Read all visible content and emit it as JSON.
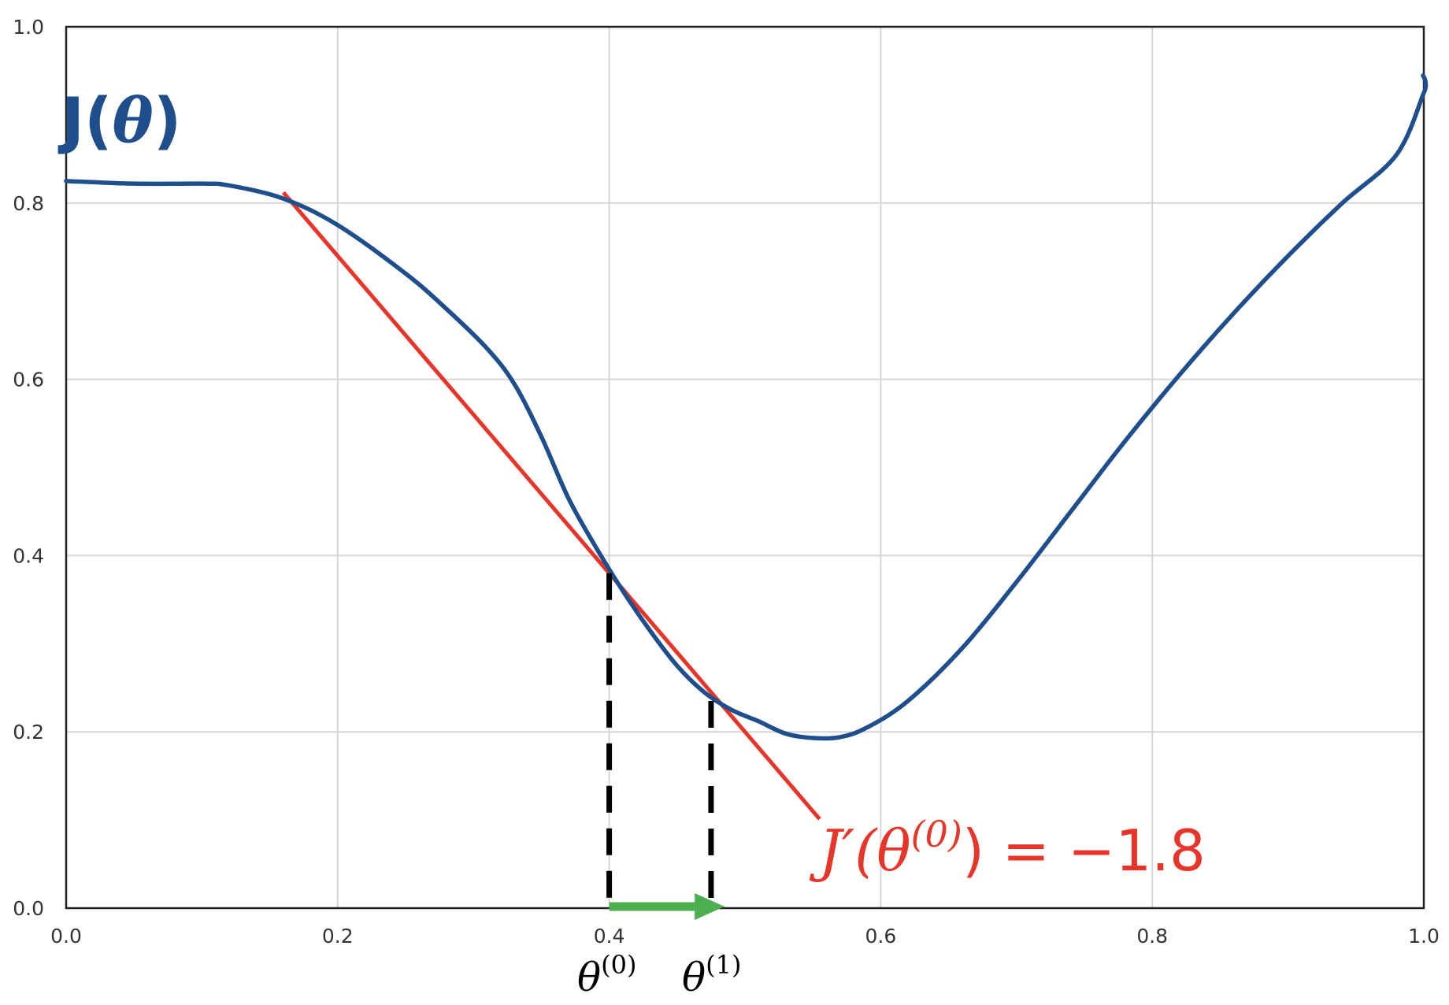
{
  "chart_data": {
    "type": "line",
    "title": "",
    "xlabel": "",
    "ylabel": "",
    "xlim": [
      0.0,
      1.0
    ],
    "ylim": [
      0.0,
      1.0
    ],
    "grid": true,
    "x_ticks": [
      0.0,
      0.2,
      0.4,
      0.6,
      0.8,
      1.0
    ],
    "y_ticks": [
      0.0,
      0.2,
      0.4,
      0.6,
      0.8,
      1.0
    ],
    "x_tick_labels": [
      "0.0",
      "0.2",
      "0.4",
      "0.6",
      "0.8",
      "1.0"
    ],
    "y_tick_labels": [
      "0.0",
      "0.2",
      "0.4",
      "0.6",
      "0.8",
      "1.0"
    ],
    "colors": {
      "curve": "#1f4e8c",
      "tangent": "#e8352a",
      "step_arrow": "#4caf50",
      "guide_lines": "#000000",
      "grid": "#d6d6d6",
      "axes": "#222222"
    },
    "series": [
      {
        "name": "J(θ)",
        "x": [
          0.0,
          0.05,
          0.1,
          0.12,
          0.16,
          0.2,
          0.25,
          0.28,
          0.31,
          0.33,
          0.35,
          0.37,
          0.39,
          0.41,
          0.43,
          0.45,
          0.47,
          0.49,
          0.51,
          0.53,
          0.55,
          0.57,
          0.59,
          0.62,
          0.66,
          0.7,
          0.74,
          0.78,
          0.82,
          0.86,
          0.9,
          0.94,
          0.98,
          1.0
        ],
        "y": [
          0.825,
          0.822,
          0.822,
          0.82,
          0.805,
          0.775,
          0.72,
          0.68,
          0.635,
          0.595,
          0.535,
          0.465,
          0.41,
          0.36,
          0.315,
          0.275,
          0.245,
          0.225,
          0.212,
          0.198,
          0.193,
          0.194,
          0.205,
          0.235,
          0.295,
          0.37,
          0.45,
          0.53,
          0.605,
          0.675,
          0.74,
          0.8,
          0.855,
          0.925
        ]
      }
    ],
    "tangent_line": {
      "label_parts": {
        "lhs": "J′(θ",
        "sup": "(0)",
        "rhs": ") = −1.8"
      },
      "slope": -1.8,
      "point": [
        0.4,
        0.38
      ],
      "x_range": [
        0.16,
        0.555
      ]
    },
    "guide_lines": [
      {
        "x": 0.4,
        "y_top": 0.38
      },
      {
        "x": 0.475,
        "y_top": 0.235
      }
    ],
    "step_arrow": {
      "from": 0.4,
      "to": 0.485,
      "y": 0.0
    },
    "annotations": {
      "curve_label": {
        "base": "J(",
        "var": "θ",
        "close": ")"
      },
      "theta0": {
        "base": "θ",
        "sup": "(0)"
      },
      "theta1": {
        "base": "θ",
        "sup": "(1)"
      }
    }
  }
}
